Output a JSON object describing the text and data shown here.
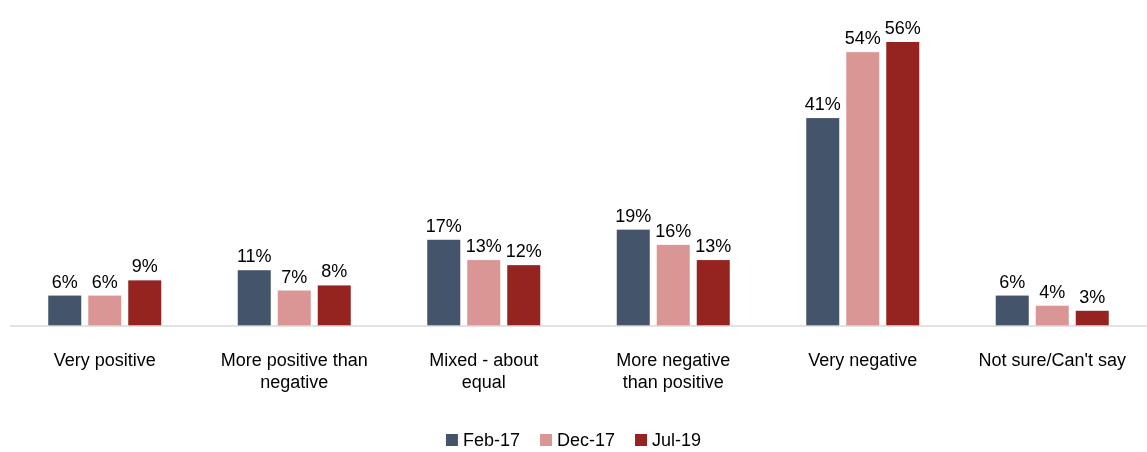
{
  "chart_data": {
    "type": "bar",
    "categories": [
      "Very positive",
      "More positive than negative",
      "Mixed - about equal",
      "More negative than positive",
      "Very negative",
      "Not sure/Can't say"
    ],
    "series": [
      {
        "name": "Feb-17",
        "color": "#44546a",
        "values": [
          6,
          11,
          17,
          19,
          41,
          6
        ],
        "value_labels": [
          "6%",
          "11%",
          "17%",
          "19%",
          "41%",
          "6%"
        ]
      },
      {
        "name": "Dec-17",
        "color": "#da9694",
        "values": [
          6,
          7,
          13,
          16,
          54,
          4
        ],
        "value_labels": [
          "6%",
          "7%",
          "13%",
          "16%",
          "54%",
          "4%"
        ]
      },
      {
        "name": "Jul-19",
        "color": "#952421",
        "values": [
          9,
          8,
          12,
          13,
          56,
          3
        ],
        "value_labels": [
          "9%",
          "8%",
          "12%",
          "13%",
          "56%",
          "3%"
        ]
      }
    ],
    "legend": "bottom"
  }
}
